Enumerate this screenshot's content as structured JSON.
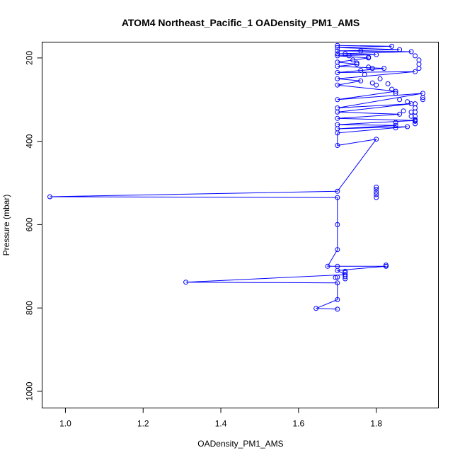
{
  "chart_data": {
    "type": "scatter",
    "title": "ATOM4 Northeast_Pacific_1 OADensity_PM1_AMS",
    "xlabel": "OADensity_PM1_AMS",
    "ylabel": "Pressure (mbar)",
    "xlim": [
      0.94,
      1.96
    ],
    "ylim": [
      1040,
      162
    ],
    "y_reversed": true,
    "x_ticks": [
      1.0,
      1.2,
      1.4,
      1.6,
      1.8
    ],
    "x_tick_labels": [
      "1.0",
      "1.2",
      "1.4",
      "1.6",
      "1.8"
    ],
    "y_ticks": [
      200,
      400,
      600,
      800,
      1000
    ],
    "y_tick_labels": [
      "200",
      "400",
      "600",
      "800",
      "1000"
    ],
    "grid": false,
    "colors": {
      "series": "#0000ff",
      "axis": "#000000",
      "background": "#ffffff"
    },
    "series": [
      {
        "style": "points-and-lines",
        "x": [
          1.7,
          1.84,
          1.7,
          1.86,
          1.7,
          1.89,
          1.7,
          1.8,
          1.7,
          1.78,
          1.7,
          1.75,
          1.7,
          1.82,
          1.7,
          1.9,
          1.7,
          1.76,
          1.7,
          1.85,
          1.7,
          1.92,
          1.7,
          1.89,
          1.7,
          1.86,
          1.7,
          1.9,
          1.7,
          1.85,
          1.7,
          1.88,
          1.7,
          1.7,
          1.8,
          1.7,
          0.96,
          1.7,
          1.7,
          1.7,
          1.675,
          1.7,
          1.825,
          1.7,
          1.72,
          1.31,
          1.7,
          1.7,
          1.645,
          1.7
        ],
        "y": [
          170,
          172,
          175,
          180,
          183,
          185,
          190,
          192,
          195,
          200,
          210,
          215,
          220,
          225,
          235,
          233,
          250,
          255,
          265,
          280,
          300,
          285,
          320,
          310,
          330,
          335,
          345,
          350,
          360,
          362,
          370,
          365,
          380,
          410,
          395,
          520,
          533,
          535,
          600,
          660,
          700,
          700,
          700,
          710,
          720,
          738,
          740,
          780,
          801,
          803
        ]
      },
      {
        "style": "points",
        "x": [
          1.72,
          1.73,
          1.74,
          1.75,
          1.76,
          1.77,
          1.78,
          1.79,
          1.8,
          1.81,
          1.83,
          1.84,
          1.85,
          1.86,
          1.87,
          1.88,
          1.89,
          1.9,
          1.9,
          1.9,
          1.9,
          1.9,
          1.91,
          1.91,
          1.91,
          1.92,
          1.92,
          1.89,
          1.9,
          1.9,
          1.9,
          1.85,
          1.85,
          1.8,
          1.8,
          1.8,
          1.8,
          1.8,
          1.72,
          1.72,
          1.72,
          1.72,
          1.72,
          1.825,
          1.825,
          1.695,
          1.7,
          1.76,
          1.78,
          1.79
        ],
        "y": [
          190,
          195,
          205,
          212,
          230,
          240,
          222,
          260,
          265,
          250,
          262,
          275,
          285,
          300,
          327,
          305,
          340,
          340,
          348,
          352,
          358,
          195,
          215,
          205,
          225,
          295,
          300,
          330,
          330,
          320,
          310,
          355,
          368,
          510,
          515,
          522,
          528,
          535,
          715,
          720,
          725,
          730,
          712,
          697,
          700,
          727,
          726,
          183,
          198,
          225
        ]
      }
    ]
  }
}
